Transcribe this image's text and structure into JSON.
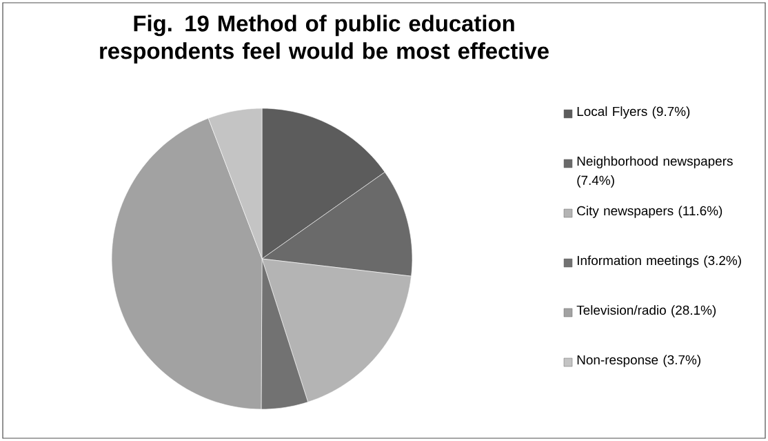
{
  "chart_data": {
    "type": "pie",
    "title": "Fig. 19 Method of public education respondents feel would be most effective",
    "categories": [
      "Local Flyers (9.7%)",
      "Neighborhood newspapers (7.4%)",
      "City newspapers (11.6%)",
      "Information meetings (3.2%)",
      "Television/radio (28.1%)",
      "Non-response (3.7%)"
    ],
    "values": [
      9.7,
      7.4,
      11.6,
      3.2,
      28.1,
      3.7
    ],
    "colors": [
      "#5c5c5c",
      "#6a6a6a",
      "#b4b4b4",
      "#727272",
      "#a2a2a2",
      "#c4c4c4"
    ],
    "legend": "right"
  }
}
